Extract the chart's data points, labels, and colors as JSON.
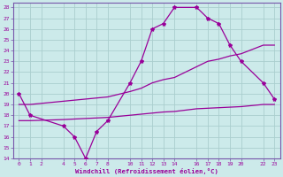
{
  "xlabel": "Windchill (Refroidissement éolien,°C)",
  "background_color": "#cceaea",
  "grid_color": "#aacece",
  "line_color": "#990099",
  "spine_color": "#7755aa",
  "xlim_min": -0.5,
  "xlim_max": 23.5,
  "ylim_min": 14,
  "ylim_max": 28.4,
  "xtick_positions": [
    0,
    1,
    2,
    4,
    5,
    6,
    7,
    8,
    10,
    11,
    12,
    13,
    14,
    16,
    17,
    18,
    19,
    20,
    22,
    23
  ],
  "xtick_labels": [
    "0",
    "1",
    "2",
    "4",
    "5",
    "6",
    "7",
    "8",
    "10",
    "11",
    "12",
    "13",
    "14",
    "16",
    "17",
    "18",
    "19",
    "20",
    "22",
    "23"
  ],
  "ytick_positions": [
    14,
    15,
    16,
    17,
    18,
    19,
    20,
    21,
    22,
    23,
    24,
    25,
    26,
    27,
    28
  ],
  "ytick_labels": [
    "14",
    "15",
    "16",
    "17",
    "18",
    "19",
    "20",
    "21",
    "22",
    "23",
    "24",
    "25",
    "26",
    "27",
    "28"
  ],
  "line1_x": [
    0,
    1,
    4,
    5,
    6,
    7,
    8,
    10,
    11,
    12,
    13,
    14,
    16,
    17,
    18,
    19,
    20,
    22,
    23
  ],
  "line1_y": [
    20,
    18,
    17,
    16,
    14,
    16.5,
    17.5,
    21,
    23,
    26,
    26.5,
    28,
    28,
    27,
    26.5,
    24.5,
    23,
    21,
    19.5
  ],
  "line2_x": [
    0,
    1,
    4,
    5,
    6,
    7,
    8,
    10,
    11,
    12,
    13,
    14,
    16,
    17,
    18,
    19,
    20,
    22,
    23
  ],
  "line2_y": [
    19,
    19,
    19.3,
    19.4,
    19.5,
    19.6,
    19.7,
    20.2,
    20.5,
    21.0,
    21.3,
    21.5,
    22.5,
    23.0,
    23.2,
    23.5,
    23.7,
    24.5,
    24.5
  ],
  "line3_x": [
    0,
    1,
    4,
    5,
    6,
    7,
    8,
    10,
    11,
    12,
    13,
    14,
    16,
    17,
    18,
    19,
    20,
    22,
    23
  ],
  "line3_y": [
    17.5,
    17.5,
    17.6,
    17.65,
    17.7,
    17.75,
    17.8,
    18.0,
    18.1,
    18.2,
    18.3,
    18.35,
    18.6,
    18.65,
    18.7,
    18.75,
    18.8,
    19.0,
    19.0
  ]
}
